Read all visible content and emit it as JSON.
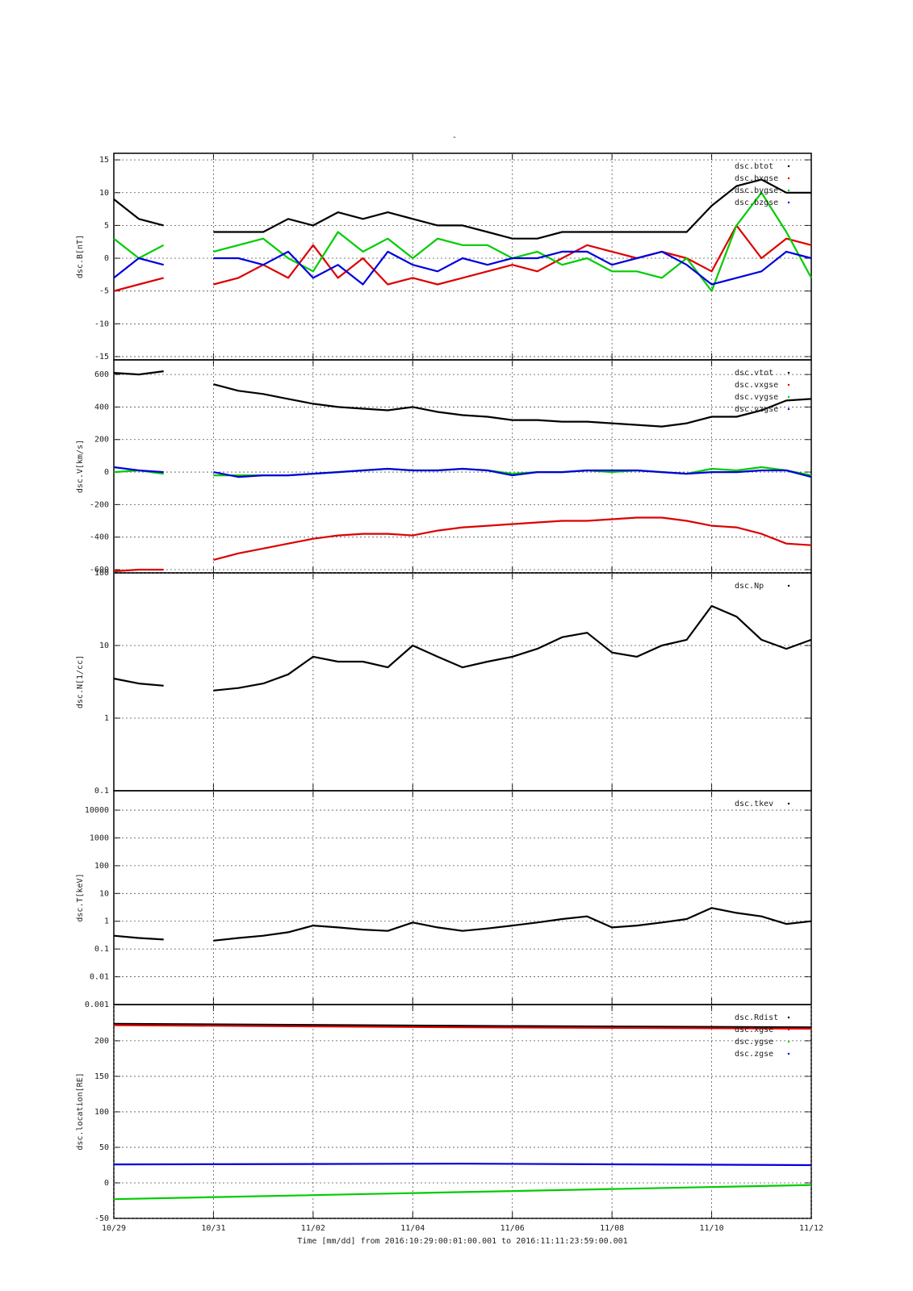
{
  "chart_data": [
    {
      "type": "line",
      "title": "-",
      "ylabel": "dsc.B[nT]",
      "grid": true,
      "log": false,
      "xlim": [
        0,
        14
      ],
      "xticks": [
        2,
        4,
        6,
        8,
        10,
        12
      ],
      "ylim": [
        -15.5,
        16
      ],
      "yticks": [
        -15,
        -10,
        -5,
        0,
        5,
        10,
        15
      ],
      "x": [
        0,
        0.5,
        1,
        1.5,
        2,
        2.5,
        3,
        3.5,
        4,
        4.5,
        5,
        5.5,
        6,
        6.5,
        7,
        7.5,
        8,
        8.5,
        9,
        9.5,
        10,
        10.5,
        11,
        11.5,
        12,
        12.5,
        13,
        13.5,
        14
      ],
      "series": [
        {
          "name": "dsc.btot",
          "color": "#000000",
          "values": [
            9,
            6,
            5,
            null,
            4,
            4,
            4,
            6,
            5,
            7,
            6,
            7,
            6,
            5,
            5,
            4,
            3,
            3,
            4,
            4,
            4,
            4,
            4,
            4,
            8,
            11,
            12,
            10,
            10
          ]
        },
        {
          "name": "dsc.bxgse",
          "color": "#dd0000",
          "values": [
            -5,
            -4,
            -3,
            null,
            -4,
            -3,
            -1,
            -3,
            2,
            -3,
            0,
            -4,
            -3,
            -4,
            -3,
            -2,
            -1,
            -2,
            0,
            2,
            1,
            0,
            1,
            0,
            -2,
            5,
            0,
            3,
            2
          ]
        },
        {
          "name": "dsc.bygse",
          "color": "#00cc00",
          "values": [
            3,
            0,
            2,
            null,
            1,
            2,
            3,
            0,
            -2,
            4,
            1,
            3,
            0,
            3,
            2,
            2,
            0,
            1,
            -1,
            0,
            -2,
            -2,
            -3,
            0,
            -5,
            5,
            10,
            4,
            -3
          ]
        },
        {
          "name": "dsc.bzgse",
          "color": "#0000dd",
          "values": [
            -3,
            0,
            -1,
            null,
            0,
            0,
            -1,
            1,
            -3,
            -1,
            -4,
            1,
            -1,
            -2,
            0,
            -1,
            0,
            0,
            1,
            1,
            -1,
            0,
            1,
            -1,
            -4,
            -3,
            -2,
            1,
            0
          ]
        }
      ]
    },
    {
      "type": "line",
      "ylabel": "dsc.V[km/s]",
      "grid": true,
      "log": false,
      "xlim": [
        0,
        14
      ],
      "xticks": [
        2,
        4,
        6,
        8,
        10,
        12
      ],
      "ylim": [
        -620,
        690
      ],
      "yticks": [
        -600,
        -400,
        -200,
        0,
        200,
        400,
        600
      ],
      "x": [
        0,
        0.5,
        1,
        1.5,
        2,
        2.5,
        3,
        3.5,
        4,
        4.5,
        5,
        5.5,
        6,
        6.5,
        7,
        7.5,
        8,
        8.5,
        9,
        9.5,
        10,
        10.5,
        11,
        11.5,
        12,
        12.5,
        13,
        13.5,
        14
      ],
      "series": [
        {
          "name": "dsc.vtot",
          "color": "#000000",
          "values": [
            610,
            600,
            620,
            null,
            540,
            500,
            480,
            450,
            420,
            400,
            390,
            380,
            400,
            370,
            350,
            340,
            320,
            320,
            310,
            310,
            300,
            290,
            280,
            300,
            340,
            340,
            380,
            440,
            450
          ]
        },
        {
          "name": "dsc.vxgse",
          "color": "#dd0000",
          "values": [
            -610,
            -600,
            -600,
            null,
            -540,
            -500,
            -470,
            -440,
            -410,
            -390,
            -380,
            -380,
            -390,
            -360,
            -340,
            -330,
            -320,
            -310,
            -300,
            -300,
            -290,
            -280,
            -280,
            -300,
            -330,
            -340,
            -380,
            -440,
            -450
          ]
        },
        {
          "name": "dsc.vygse",
          "color": "#00cc00",
          "values": [
            0,
            10,
            -10,
            null,
            -20,
            -20,
            -20,
            -20,
            -10,
            0,
            10,
            20,
            10,
            10,
            20,
            10,
            -10,
            0,
            0,
            10,
            0,
            10,
            0,
            -10,
            20,
            10,
            30,
            10,
            -20
          ]
        },
        {
          "name": "dsc.vzgse",
          "color": "#0000dd",
          "values": [
            30,
            10,
            0,
            null,
            0,
            -30,
            -20,
            -20,
            -10,
            0,
            10,
            20,
            10,
            10,
            20,
            10,
            -20,
            0,
            0,
            10,
            10,
            10,
            0,
            -10,
            0,
            0,
            10,
            10,
            -30
          ]
        }
      ]
    },
    {
      "type": "line",
      "ylabel": "dsc.N[1/cc]",
      "grid": true,
      "log": true,
      "xlim": [
        0,
        14
      ],
      "xticks": [
        2,
        4,
        6,
        8,
        10,
        12
      ],
      "ylim": [
        0.1,
        100
      ],
      "yticks": [
        0.1,
        1,
        10,
        100
      ],
      "x": [
        0,
        0.5,
        1,
        1.5,
        2,
        2.5,
        3,
        3.5,
        4,
        4.5,
        5,
        5.5,
        6,
        6.5,
        7,
        7.5,
        8,
        8.5,
        9,
        9.5,
        10,
        10.5,
        11,
        11.5,
        12,
        12.5,
        13,
        13.5,
        14
      ],
      "series": [
        {
          "name": "dsc.Np",
          "color": "#000000",
          "values": [
            3.5,
            3,
            2.8,
            null,
            2.4,
            2.6,
            3,
            4,
            7,
            6,
            6,
            5,
            10,
            7,
            5,
            6,
            7,
            9,
            13,
            15,
            8,
            7,
            10,
            12,
            35,
            25,
            12,
            9,
            12
          ]
        }
      ]
    },
    {
      "type": "line",
      "ylabel": "dsc.T[keV]",
      "grid": true,
      "log": true,
      "xlim": [
        0,
        14
      ],
      "xticks": [
        2,
        4,
        6,
        8,
        10,
        12
      ],
      "ylim": [
        0.001,
        50000
      ],
      "yticks": [
        0.001,
        0.01,
        0.1,
        1,
        10,
        100,
        1000,
        10000
      ],
      "x": [
        0,
        0.5,
        1,
        1.5,
        2,
        2.5,
        3,
        3.5,
        4,
        4.5,
        5,
        5.5,
        6,
        6.5,
        7,
        7.5,
        8,
        8.5,
        9,
        9.5,
        10,
        10.5,
        11,
        11.5,
        12,
        12.5,
        13,
        13.5,
        14
      ],
      "series": [
        {
          "name": "dsc.tkev",
          "color": "#000000",
          "values": [
            0.3,
            0.25,
            0.22,
            null,
            0.2,
            0.25,
            0.3,
            0.4,
            0.7,
            0.6,
            0.5,
            0.45,
            0.9,
            0.6,
            0.45,
            0.55,
            0.7,
            0.9,
            1.2,
            1.5,
            0.6,
            0.7,
            0.9,
            1.2,
            3,
            2,
            1.5,
            0.8,
            1
          ]
        }
      ]
    },
    {
      "type": "line",
      "ylabel": "dsc.location[RE]",
      "grid": true,
      "log": false,
      "xlabel": "Time [mm/dd]  from 2016:10:29:00:01:00.001  to  2016:11:11:23:59:00.001",
      "xlim": [
        0,
        14
      ],
      "xticks": [
        {
          "value": 0,
          "label": "10/29"
        },
        {
          "value": 2,
          "label": "10/31"
        },
        {
          "value": 4,
          "label": "11/02"
        },
        {
          "value": 6,
          "label": "11/04"
        },
        {
          "value": 8,
          "label": "11/06"
        },
        {
          "value": 10,
          "label": "11/08"
        },
        {
          "value": 12,
          "label": "11/10"
        },
        {
          "value": 14,
          "label": "11/12"
        }
      ],
      "ylim": [
        -50,
        251
      ],
      "yticks": [
        -50,
        0,
        50,
        100,
        150,
        200
      ],
      "x": [
        0,
        7,
        14
      ],
      "series": [
        {
          "name": "dsc.Rdist",
          "color": "#000000",
          "values": [
            224,
            221,
            219
          ]
        },
        {
          "name": "dsc.xgse",
          "color": "#dd0000",
          "values": [
            222,
            219,
            217
          ]
        },
        {
          "name": "dsc.ygse",
          "color": "#00cc00",
          "values": [
            -23,
            -13,
            -3
          ]
        },
        {
          "name": "dsc.zgse",
          "color": "#0000dd",
          "values": [
            26,
            27,
            25
          ]
        }
      ]
    }
  ]
}
